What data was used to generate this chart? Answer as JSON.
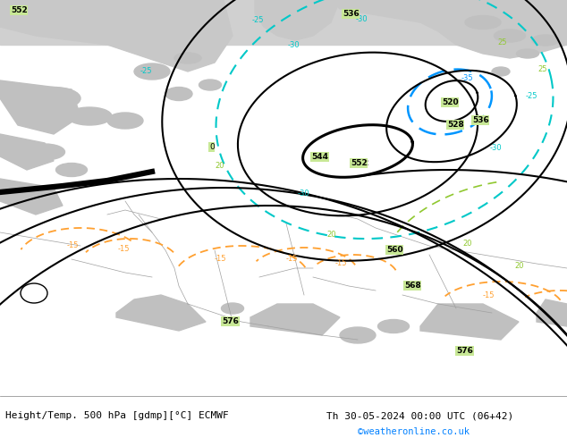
{
  "title_left": "Height/Temp. 500 hPa [gdmp][°C] ECMWF",
  "title_right": "Th 30-05-2024 00:00 UTC (06+42)",
  "title_right2": "©weatheronline.co.uk",
  "bg_land": "#c8e896",
  "bg_gray": "#b8b8b8",
  "bg_top": "#d0d0d0",
  "cyan_color": "#00c8c8",
  "blue_color": "#0096ff",
  "ygreen_color": "#90c830",
  "orange_color": "#ffa030",
  "text_color_url": "#0080ff",
  "figsize": [
    6.34,
    4.9
  ],
  "dpi": 100
}
